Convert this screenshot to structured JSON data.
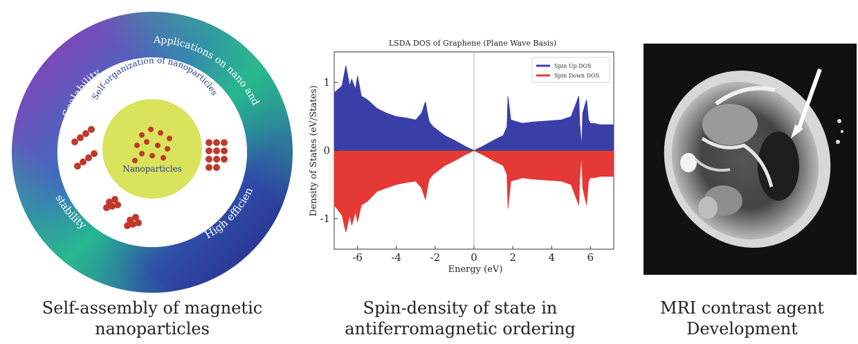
{
  "ring": {
    "outer_labels": {
      "top_left": "Scalability",
      "top_right": "Applications on nano and micro scales",
      "bottom_right": "High efficiency",
      "bottom_left": "stability"
    },
    "inner_label": "Self-organization of nanoparticles",
    "center_label": "Nanoparticles",
    "colors": {
      "ring_purple": "#7b3fb0",
      "ring_green": "#2bbf8a",
      "ring_blue": "#2e3a9a",
      "center_fill": "#d6e25a",
      "particle": "#c0392b"
    }
  },
  "chart_data": {
    "type": "area",
    "title": "LSDA DOS of Graphene (Plane Wave Basis)",
    "xlabel": "Energy (eV)",
    "ylabel": "Density of States (eV/States)",
    "xlim": [
      -7.2,
      7.2
    ],
    "ylim": [
      -1.45,
      1.45
    ],
    "xticks": [
      "-6",
      "-4",
      "-2",
      "0",
      "2",
      "4",
      "6"
    ],
    "xtick_values": [
      -6,
      -4,
      -2,
      0,
      2,
      4,
      6
    ],
    "yticks": [
      "-1",
      "0",
      "1"
    ],
    "ytick_values": [
      -1,
      0,
      1
    ],
    "legend": {
      "placement": "top-right",
      "entries": [
        "Spin Up DOS",
        "Spin Down DOS"
      ]
    },
    "series": [
      {
        "name": "Spin Up DOS",
        "color": "#3a3fa8",
        "x": [
          -7.2,
          -6.8,
          -6.6,
          -6.4,
          -6.3,
          -6.1,
          -6.0,
          -5.8,
          -5.5,
          -5.0,
          -4.5,
          -4.0,
          -3.5,
          -3.0,
          -2.7,
          -2.5,
          -2.4,
          -2.3,
          -2.1,
          -1.5,
          -1.0,
          -0.5,
          0,
          0.5,
          1.0,
          1.5,
          1.7,
          1.75,
          1.9,
          2.5,
          3.0,
          3.5,
          4.0,
          4.5,
          5.0,
          5.4,
          5.45,
          5.55,
          5.6,
          5.8,
          5.9,
          6.0,
          6.2,
          6.5,
          7.2
        ],
        "y": [
          0.85,
          0.95,
          1.25,
          0.95,
          1.05,
          0.9,
          1.1,
          0.8,
          0.75,
          0.62,
          0.55,
          0.5,
          0.48,
          0.45,
          0.55,
          0.72,
          0.55,
          0.42,
          0.35,
          0.22,
          0.15,
          0.07,
          0.0,
          0.07,
          0.15,
          0.22,
          0.35,
          0.8,
          0.45,
          0.4,
          0.42,
          0.43,
          0.44,
          0.45,
          0.5,
          0.8,
          0.4,
          0.05,
          0.55,
          0.75,
          0.45,
          0.4,
          0.4,
          0.38,
          0.38
        ]
      },
      {
        "name": "Spin Down DOS",
        "color": "#e53935",
        "x": [
          -7.2,
          -6.8,
          -6.6,
          -6.4,
          -6.3,
          -6.1,
          -6.0,
          -5.8,
          -5.5,
          -5.0,
          -4.5,
          -4.0,
          -3.5,
          -3.0,
          -2.7,
          -2.5,
          -2.4,
          -2.3,
          -2.1,
          -1.5,
          -1.0,
          -0.5,
          0,
          0.5,
          1.0,
          1.5,
          1.7,
          1.75,
          1.9,
          2.5,
          3.0,
          3.5,
          4.0,
          4.5,
          5.0,
          5.4,
          5.45,
          5.55,
          5.6,
          5.8,
          5.9,
          6.0,
          6.2,
          6.5,
          7.2
        ],
        "y": [
          -0.8,
          -0.95,
          -1.2,
          -0.95,
          -1.1,
          -0.9,
          -1.05,
          -0.8,
          -0.75,
          -0.6,
          -0.55,
          -0.5,
          -0.47,
          -0.45,
          -0.55,
          -0.72,
          -0.55,
          -0.42,
          -0.35,
          -0.22,
          -0.15,
          -0.07,
          0.0,
          -0.07,
          -0.15,
          -0.22,
          -0.35,
          -0.85,
          -0.45,
          -0.4,
          -0.42,
          -0.43,
          -0.44,
          -0.45,
          -0.5,
          -0.8,
          -0.4,
          -0.05,
          -0.55,
          -0.8,
          -0.45,
          -0.4,
          -0.4,
          -0.38,
          -0.38
        ]
      }
    ],
    "grid": false
  },
  "captions": {
    "ring": [
      "Self-assembly of magnetic",
      "nanoparticles"
    ],
    "chart": [
      "Spin-density of state in",
      "antiferromagnetic ordering"
    ],
    "mri": [
      "MRI contrast agent",
      "Development"
    ]
  }
}
